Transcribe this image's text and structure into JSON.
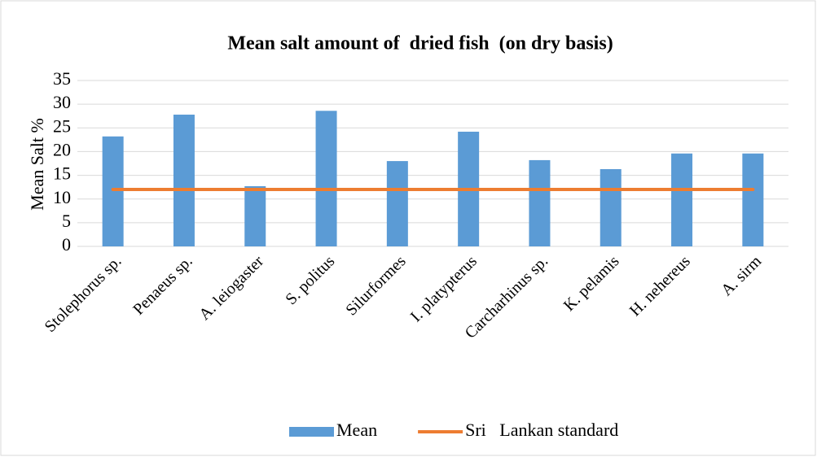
{
  "chart_data": {
    "type": "bar",
    "title": "Mean salt amount of  dried fish  (on dry basis)",
    "y_label": "Mean Salt %",
    "categories": [
      "Stolephorus sp.",
      "Penaeus sp.",
      "A. leiogaster",
      "S. politus",
      "Silurformes",
      "I. platypterus",
      "Carcharhinus sp.",
      "K. pelamis",
      "H. nehereus",
      "A. sirm"
    ],
    "series": [
      {
        "name": "Mean",
        "color": "#5b9bd5",
        "type": "bar",
        "values": [
          23.2,
          27.8,
          12.7,
          28.6,
          18.0,
          24.2,
          18.2,
          16.3,
          19.6,
          19.6
        ]
      },
      {
        "name": "Sri   Lankan standard",
        "color": "#ed7d31",
        "type": "line",
        "values": [
          12,
          12,
          12,
          12,
          12,
          12,
          12,
          12,
          12,
          12
        ]
      }
    ],
    "ylim": [
      0,
      35
    ],
    "yticks": [
      0,
      5,
      10,
      15,
      20,
      25,
      30,
      35
    ],
    "grid": true,
    "legend": "bottom"
  }
}
